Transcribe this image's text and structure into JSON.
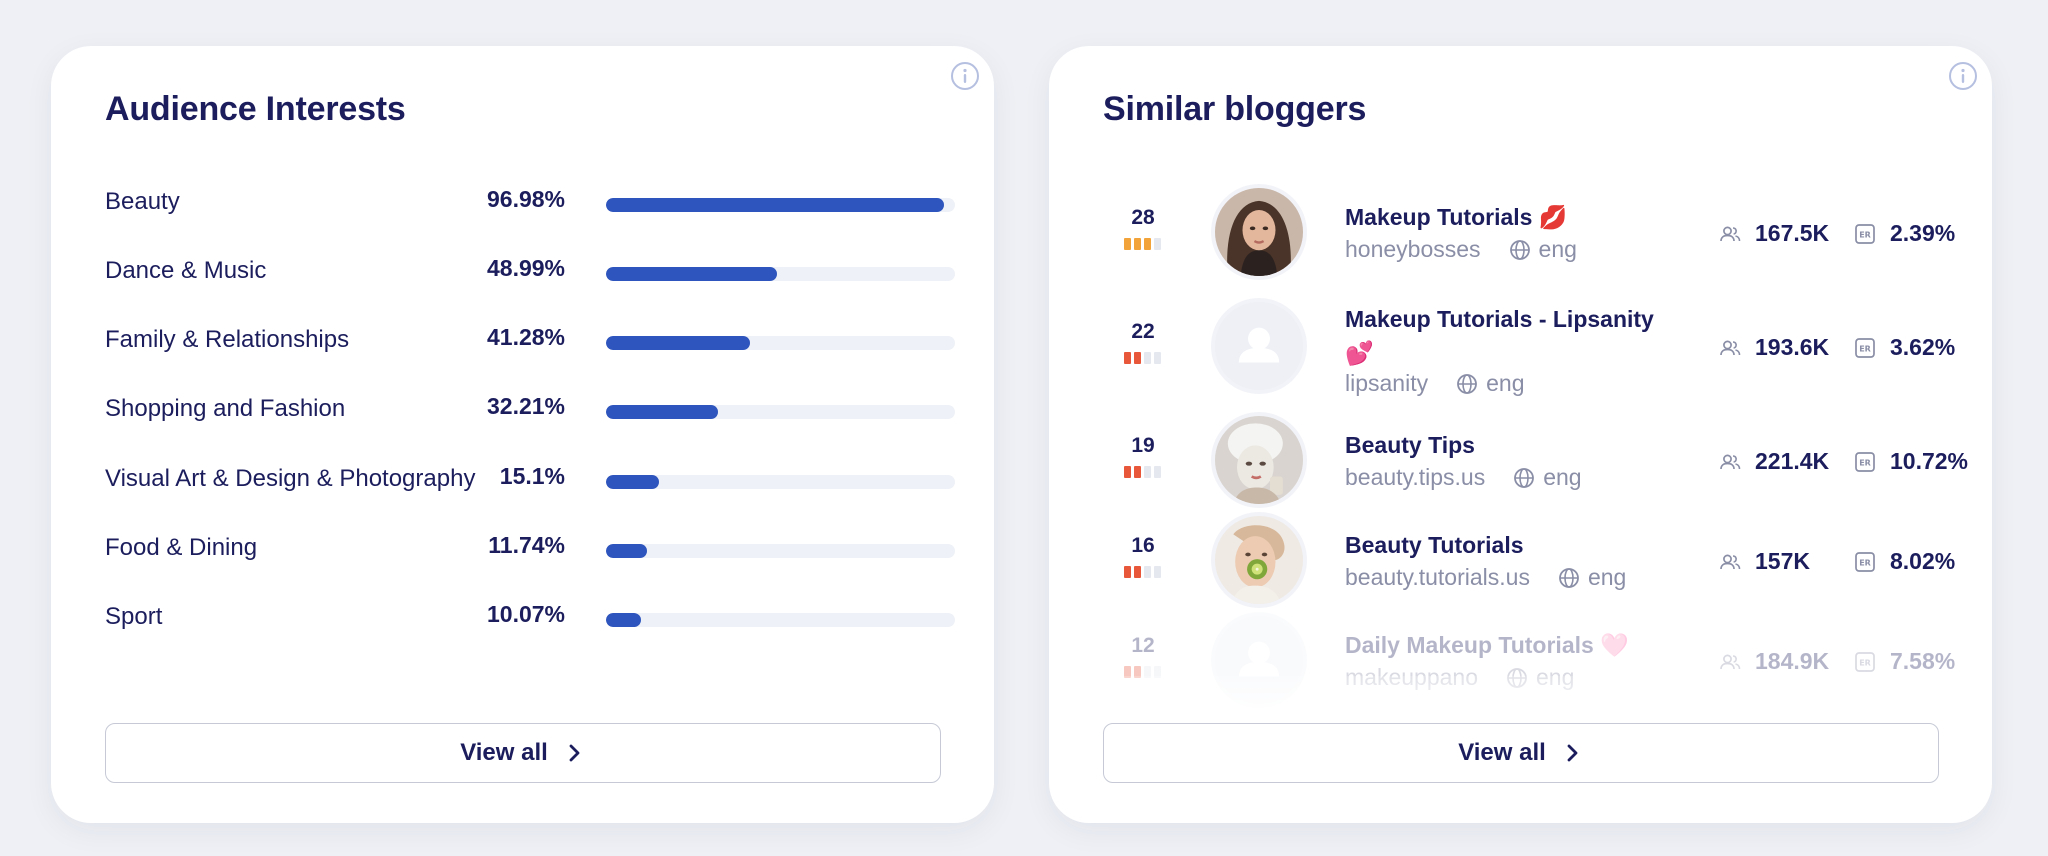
{
  "interests": {
    "title": "Audience Interests",
    "items": [
      {
        "label": "Beauty",
        "percent_text": "96.98%",
        "value": 96.98
      },
      {
        "label": "Dance & Music",
        "percent_text": "48.99%",
        "value": 48.99
      },
      {
        "label": "Family & Relationships",
        "percent_text": "41.28%",
        "value": 41.28
      },
      {
        "label": "Shopping and Fashion",
        "percent_text": "32.21%",
        "value": 32.21
      },
      {
        "label": "Visual Art & Design & Photography",
        "percent_text": "15.1%",
        "value": 15.1
      },
      {
        "label": "Food & Dining",
        "percent_text": "11.74%",
        "value": 11.74
      },
      {
        "label": "Sport",
        "percent_text": "10.07%",
        "value": 10.07
      }
    ],
    "view_all_label": "View all"
  },
  "bloggers": {
    "title": "Similar bloggers",
    "items": [
      {
        "rank": "28",
        "rank_level": 3,
        "rank_color": "#f2a33a",
        "name": "Makeup Tutorials 💋",
        "handle": "honeybosses",
        "lang": "eng",
        "followers": "167.5K",
        "er": "2.39%",
        "avatar": "photo-woman"
      },
      {
        "rank": "22",
        "rank_level": 2,
        "rank_color": "#e8573a",
        "name": "Makeup Tutorials - Lipsanity 💕",
        "handle": "lipsanity",
        "lang": "eng",
        "followers": "193.6K",
        "er": "3.62%",
        "avatar": "placeholder"
      },
      {
        "rank": "19",
        "rank_level": 2,
        "rank_color": "#e8573a",
        "name": "Beauty Tips",
        "handle": "beauty.tips.us",
        "lang": "eng",
        "followers": "221.4K",
        "er": "10.72%",
        "avatar": "photo-mask"
      },
      {
        "rank": "16",
        "rank_level": 2,
        "rank_color": "#e8573a",
        "name": "Beauty Tutorials",
        "handle": "beauty.tutorials.us",
        "lang": "eng",
        "followers": "157K",
        "er": "8.02%",
        "avatar": "photo-kiwi"
      },
      {
        "rank": "12",
        "rank_level": 2,
        "rank_color": "#e8573a",
        "name": "Daily Makeup Tutorials 🩷",
        "handle": "makeuppano",
        "lang": "eng",
        "followers": "184.9K",
        "er": "7.58%",
        "avatar": "placeholder"
      }
    ],
    "view_all_label": "View all"
  },
  "colors": {
    "accent_bar": "#2e55bd",
    "text_primary": "#1b1d5c",
    "text_muted": "#8a8ea6",
    "rank_gold": "#f2a33a",
    "rank_red": "#e8573a"
  },
  "icons": [
    "info-icon",
    "chevron-right-icon",
    "globe-icon",
    "followers-icon",
    "er-icon",
    "user-placeholder-icon"
  ]
}
